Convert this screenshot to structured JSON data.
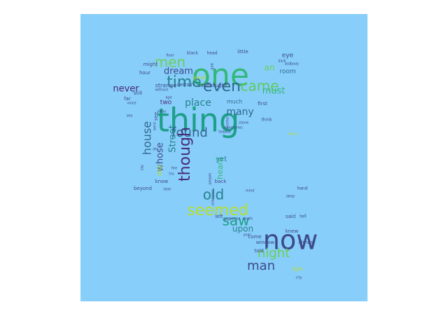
{
  "canvas": {
    "background": "#87cefa"
  },
  "words": [
    {
      "text": "one",
      "color": "#35b779"
    },
    {
      "text": "thing",
      "color": "#1f9e89"
    },
    {
      "text": "now",
      "color": "#3e4a89"
    },
    {
      "text": "time",
      "color": "#26828e"
    },
    {
      "text": "came",
      "color": "#5ec962"
    },
    {
      "text": "even",
      "color": "#31688e"
    },
    {
      "text": "men",
      "color": "#6ece58"
    },
    {
      "text": "dream",
      "color": "#3e4a89"
    },
    {
      "text": "found",
      "color": "#31688e"
    },
    {
      "text": "though",
      "color": "#472d7b"
    },
    {
      "text": "house",
      "color": "#31688e"
    },
    {
      "text": "seemed",
      "color": "#b5de2b"
    },
    {
      "text": "saw",
      "color": "#1f9e89"
    },
    {
      "text": "old",
      "color": "#26828e"
    },
    {
      "text": "night",
      "color": "#6ece58"
    },
    {
      "text": "man",
      "color": "#3e4a89"
    },
    {
      "text": "place",
      "color": "#26828e"
    },
    {
      "text": "many",
      "color": "#31688e"
    },
    {
      "text": "must",
      "color": "#35b779"
    },
    {
      "text": "never",
      "color": "#482878"
    },
    {
      "text": "Street",
      "color": "#26828e"
    },
    {
      "text": "whose",
      "color": "#3e4a89"
    },
    {
      "text": "upon",
      "color": "#26828e"
    },
    {
      "text": "room",
      "color": "#31688e"
    },
    {
      "text": "an",
      "color": "#6ece58"
    },
    {
      "text": "eye",
      "color": "#3e4a89"
    },
    {
      "text": "two",
      "color": "#482878"
    },
    {
      "text": "much",
      "color": "#31688e"
    },
    {
      "text": "strange",
      "color": "#3e4a89"
    },
    {
      "text": "certain",
      "color": "#3e4a89"
    },
    {
      "text": "door",
      "color": "#3e4a89"
    },
    {
      "text": "thought",
      "color": "#3e4a89"
    },
    {
      "text": "great",
      "color": "#b5de2b"
    },
    {
      "text": "might",
      "color": "#3e4a89"
    },
    {
      "text": "hour",
      "color": "#3e4a89"
    },
    {
      "text": "little",
      "color": "#3e4a89"
    },
    {
      "text": "black",
      "color": "#3e4a89"
    },
    {
      "text": "head",
      "color": "#3e4a89"
    },
    {
      "text": "know",
      "color": "#3e4a89"
    },
    {
      "text": "beyond",
      "color": "#3e4a89"
    },
    {
      "text": "heard",
      "color": "#35b779"
    },
    {
      "text": "yet",
      "color": "#26828e"
    },
    {
      "text": "back",
      "color": "#3e4a89"
    },
    {
      "text": "left",
      "color": "#3e4a89"
    },
    {
      "text": "said",
      "color": "#3e4a89"
    },
    {
      "text": "knew",
      "color": "#3e4a89"
    },
    {
      "text": "almost",
      "color": "#3e4a89"
    },
    {
      "text": "come",
      "color": "#3e4a89"
    },
    {
      "text": "window",
      "color": "#3e4a89"
    },
    {
      "text": "told",
      "color": "#3e4a89"
    },
    {
      "text": "light",
      "color": "#b5de2b"
    },
    {
      "text": "first",
      "color": "#3e4a89"
    },
    {
      "text": "think",
      "color": "#3e4a89"
    },
    {
      "text": "hand",
      "color": "#3e4a89"
    },
    {
      "text": "tell",
      "color": "#3e4a89"
    },
    {
      "text": "city",
      "color": "#3e4a89"
    },
    {
      "text": "far",
      "color": "#3e4a89"
    },
    {
      "text": "see",
      "color": "#3e4a89"
    },
    {
      "text": "still",
      "color": "#3e4a89"
    },
    {
      "text": "world",
      "color": "#b5de2b"
    },
    {
      "text": "voice",
      "color": "#3e4a89"
    },
    {
      "text": "away",
      "color": "#3e4a89"
    },
    {
      "text": "people",
      "color": "#3e4a89"
    },
    {
      "text": "unknown",
      "color": "#3e4a89"
    },
    {
      "text": "later",
      "color": "#3e4a89"
    },
    {
      "text": "toward",
      "color": "#3e4a89"
    },
    {
      "text": "sometimes",
      "color": "#3e4a89"
    },
    {
      "text": "stone",
      "color": "#3e4a89"
    },
    {
      "text": "fire",
      "color": "#3e4a89"
    },
    {
      "text": "year",
      "color": "#3e4a89"
    },
    {
      "text": "without",
      "color": "#3e4a89"
    },
    {
      "text": "mind",
      "color": "#3e4a89"
    },
    {
      "text": "horror",
      "color": "#3e4a89"
    },
    {
      "text": "death",
      "color": "#3e4a89"
    },
    {
      "text": "body",
      "color": "#3e4a89"
    },
    {
      "text": "last",
      "color": "#3e4a89"
    },
    {
      "text": "god",
      "color": "#3e4a89"
    },
    {
      "text": "went",
      "color": "#3e4a89"
    },
    {
      "text": "age",
      "color": "#3e4a89"
    },
    {
      "text": "wall",
      "color": "#3e4a89"
    },
    {
      "text": "sky",
      "color": "#3e4a89"
    },
    {
      "text": "floor",
      "color": "#3e4a89"
    },
    {
      "text": "dark",
      "color": "#3e4a89"
    },
    {
      "text": "another",
      "color": "#3e4a89"
    },
    {
      "text": "life",
      "color": "#3e4a89"
    },
    {
      "text": "his",
      "color": "#3e4a89"
    },
    {
      "text": "sea",
      "color": "#3e4a89"
    },
    {
      "text": "deep",
      "color": "#3e4a89"
    },
    {
      "text": "day",
      "color": "#b5de2b"
    }
  ]
}
